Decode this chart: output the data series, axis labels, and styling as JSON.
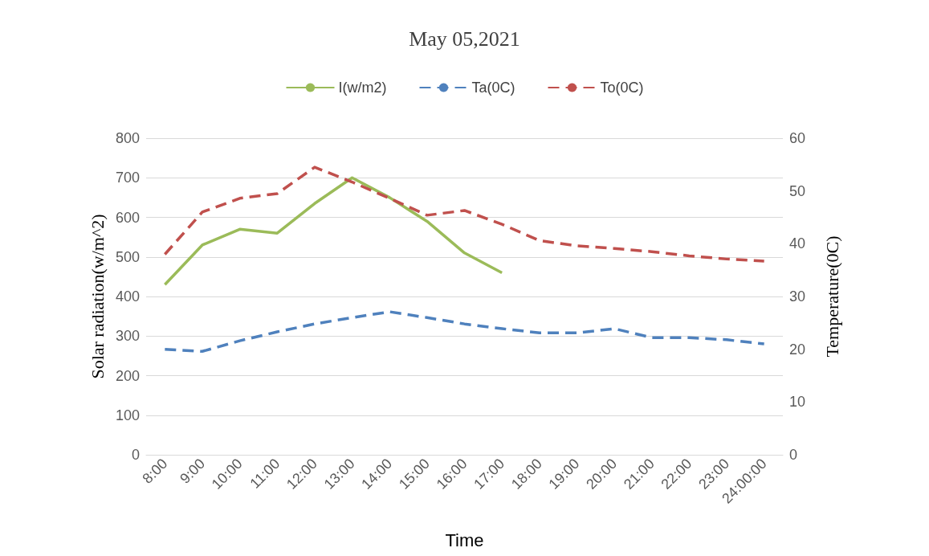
{
  "chart_data": {
    "type": "line",
    "title": "May 05,2021",
    "xlabel": "Time",
    "ylabel": "Solar radiation(w/m^2)",
    "y2label": "Temperature(0C)",
    "categories": [
      "8:00",
      "9:00",
      "10:00",
      "11:00",
      "12:00",
      "13:00",
      "14:00",
      "15:00",
      "16:00",
      "17:00",
      "18:00",
      "19:00",
      "20:00",
      "21:00",
      "22:00",
      "23:00",
      "24:00:00"
    ],
    "series": [
      {
        "name": "I(w/m2)",
        "color": "#9bbb59",
        "line_style": "solid",
        "values": [
          430,
          530,
          570,
          560,
          635,
          700,
          650,
          590,
          510,
          460,
          null,
          null,
          null,
          null,
          null,
          null,
          null
        ]
      },
      {
        "name": "Ta(0C)",
        "color": "#4f81bd",
        "line_style": "dashed",
        "axis": "y2",
        "values": [
          20,
          19.6,
          21.6,
          23.3,
          24.8,
          26,
          27.1,
          26,
          24.8,
          23.9,
          23.1,
          23.1,
          23.9,
          22.2,
          22.2,
          21.8,
          21
        ]
      },
      {
        "name": "To(0C)",
        "color": "#c0504d",
        "line_style": "dashed",
        "axis": "y2",
        "values": [
          38,
          46,
          48.6,
          49.5,
          54.5,
          51.7,
          48.6,
          45.4,
          46.3,
          43.7,
          40.6,
          39.6,
          39.1,
          38.5,
          37.7,
          37.1,
          36.7
        ]
      }
    ],
    "ylim": [
      0,
      800
    ],
    "yticks": [
      0,
      100,
      200,
      300,
      400,
      500,
      600,
      700,
      800
    ],
    "y2lim": [
      0,
      60
    ],
    "y2ticks": [
      0,
      10,
      20,
      30,
      40,
      50,
      60
    ],
    "grid": "y",
    "legend": "top",
    "marker": "none"
  }
}
